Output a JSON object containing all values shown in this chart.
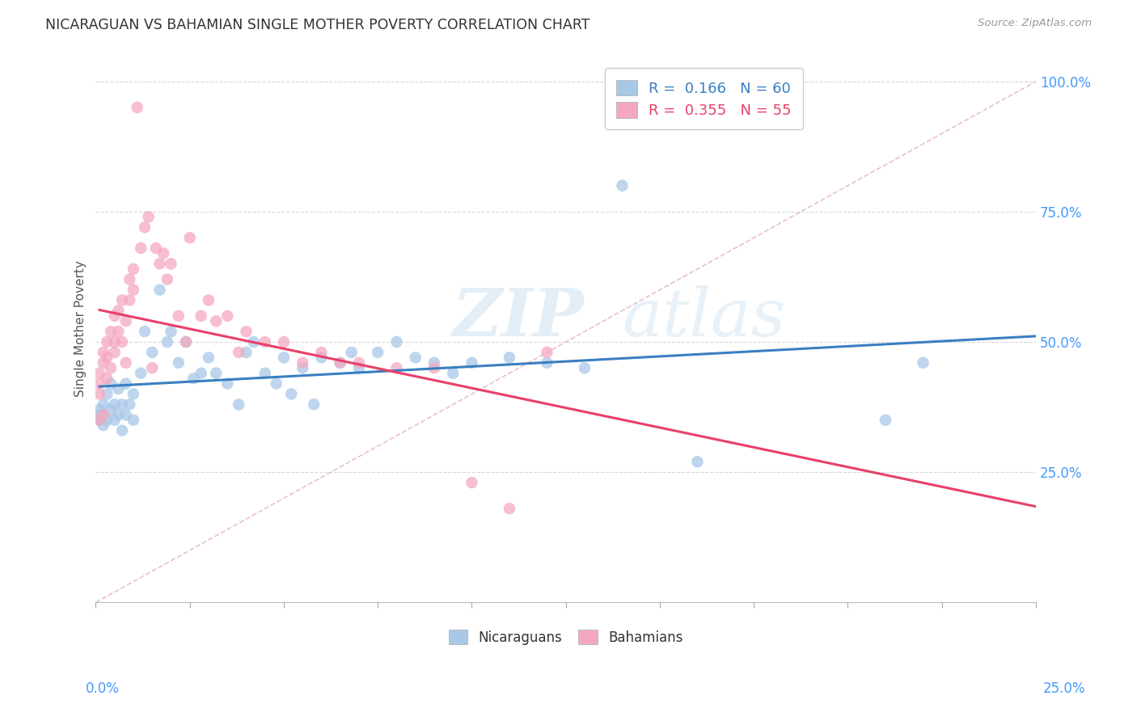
{
  "title": "NICARAGUAN VS BAHAMIAN SINGLE MOTHER POVERTY CORRELATION CHART",
  "source": "Source: ZipAtlas.com",
  "ylabel": "Single Mother Poverty",
  "xlim": [
    0.0,
    0.25
  ],
  "ylim": [
    0.0,
    1.05
  ],
  "ytick_values": [
    0.25,
    0.5,
    0.75,
    1.0
  ],
  "ytick_labels": [
    "25.0%",
    "50.0%",
    "75.0%",
    "100.0%"
  ],
  "nicaraguan_color": "#a8c8e8",
  "bahamian_color": "#f4a8c0",
  "trend_nicaraguan_color": "#3a7fc1",
  "trend_bahamian_color": "#e8406a",
  "diagonal_color": "#e8b8c8",
  "watermark_zip": "ZIP",
  "watermark_atlas": "atlas",
  "legend_r1_color": "#3a7fc1",
  "legend_r2_color": "#e8406a",
  "legend_n_color": "#3a7fc1",
  "nic_R": 0.166,
  "nic_N": 60,
  "bah_R": 0.355,
  "bah_N": 55,
  "nicaraguan_x": [
    0.001,
    0.001,
    0.001,
    0.002,
    0.002,
    0.002,
    0.003,
    0.003,
    0.004,
    0.004,
    0.005,
    0.005,
    0.006,
    0.006,
    0.007,
    0.007,
    0.008,
    0.008,
    0.009,
    0.01,
    0.01,
    0.012,
    0.013,
    0.015,
    0.017,
    0.019,
    0.02,
    0.022,
    0.024,
    0.026,
    0.028,
    0.03,
    0.032,
    0.035,
    0.038,
    0.04,
    0.042,
    0.045,
    0.048,
    0.05,
    0.052,
    0.055,
    0.058,
    0.06,
    0.065,
    0.068,
    0.07,
    0.075,
    0.08,
    0.085,
    0.09,
    0.095,
    0.1,
    0.11,
    0.12,
    0.13,
    0.14,
    0.16,
    0.21,
    0.22
  ],
  "nicaraguan_y": [
    0.35,
    0.37,
    0.36,
    0.34,
    0.38,
    0.36,
    0.4,
    0.35,
    0.42,
    0.37,
    0.35,
    0.38,
    0.36,
    0.41,
    0.38,
    0.33,
    0.42,
    0.36,
    0.38,
    0.35,
    0.4,
    0.44,
    0.52,
    0.48,
    0.6,
    0.5,
    0.52,
    0.46,
    0.5,
    0.43,
    0.44,
    0.47,
    0.44,
    0.42,
    0.38,
    0.48,
    0.5,
    0.44,
    0.42,
    0.47,
    0.4,
    0.45,
    0.38,
    0.47,
    0.46,
    0.48,
    0.45,
    0.48,
    0.5,
    0.47,
    0.46,
    0.44,
    0.46,
    0.47,
    0.46,
    0.45,
    0.8,
    0.27,
    0.35,
    0.46
  ],
  "bahamian_x": [
    0.001,
    0.001,
    0.001,
    0.001,
    0.002,
    0.002,
    0.002,
    0.003,
    0.003,
    0.003,
    0.004,
    0.004,
    0.005,
    0.005,
    0.005,
    0.006,
    0.006,
    0.007,
    0.007,
    0.008,
    0.008,
    0.009,
    0.009,
    0.01,
    0.01,
    0.011,
    0.012,
    0.013,
    0.014,
    0.015,
    0.016,
    0.017,
    0.018,
    0.019,
    0.02,
    0.022,
    0.024,
    0.025,
    0.028,
    0.03,
    0.032,
    0.035,
    0.038,
    0.04,
    0.045,
    0.05,
    0.055,
    0.06,
    0.065,
    0.07,
    0.08,
    0.09,
    0.1,
    0.11,
    0.12
  ],
  "bahamian_y": [
    0.35,
    0.4,
    0.42,
    0.44,
    0.36,
    0.46,
    0.48,
    0.5,
    0.47,
    0.43,
    0.52,
    0.45,
    0.55,
    0.48,
    0.5,
    0.52,
    0.56,
    0.58,
    0.5,
    0.54,
    0.46,
    0.62,
    0.58,
    0.6,
    0.64,
    0.95,
    0.68,
    0.72,
    0.74,
    0.45,
    0.68,
    0.65,
    0.67,
    0.62,
    0.65,
    0.55,
    0.5,
    0.7,
    0.55,
    0.58,
    0.54,
    0.55,
    0.48,
    0.52,
    0.5,
    0.5,
    0.46,
    0.48,
    0.46,
    0.46,
    0.45,
    0.45,
    0.23,
    0.18,
    0.48
  ]
}
